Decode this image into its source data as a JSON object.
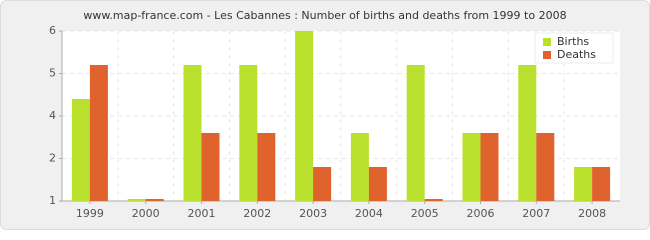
{
  "chart_data": {
    "type": "bar",
    "title": "www.map-france.com - Les Cabannes : Number of births and deaths from 1999 to 2008",
    "categories": [
      "1999",
      "2000",
      "2001",
      "2002",
      "2003",
      "2004",
      "2005",
      "2006",
      "2007",
      "2008"
    ],
    "series": [
      {
        "name": "Births",
        "color": "#b8e02c",
        "values": [
          4,
          1,
          5,
          5,
          6,
          3,
          5,
          3,
          5,
          2
        ]
      },
      {
        "name": "Deaths",
        "color": "#e0622d",
        "values": [
          5,
          1,
          3,
          3,
          2,
          2,
          1,
          3,
          3,
          2
        ]
      }
    ],
    "ylim": [
      1,
      6
    ],
    "yticks": [
      1,
      {
        "value": 2.25,
        "label": "2"
      },
      {
        "value": 3.5,
        "label": "4"
      },
      {
        "value": 4.75,
        "label": "5"
      },
      6
    ],
    "grid": true,
    "legend": "top-right"
  }
}
